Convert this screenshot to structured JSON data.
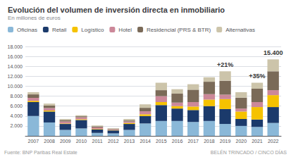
{
  "chart_data": {
    "type": "bar",
    "title": "Evolución del volumen de inversión directa en inmobiliario",
    "subtitle": "En millones de euros",
    "source": "Fuente: BNP Paribas Real Estate",
    "author": "BELÉN TRINCADO / CINCO DÍAS",
    "categories": [
      "2007",
      "2008",
      "2009",
      "2010",
      "2011",
      "2012",
      "2013",
      "2014",
      "2015",
      "2016",
      "2017",
      "2018",
      "2019",
      "2020",
      "2021",
      "2022"
    ],
    "series": [
      {
        "name": "Oficinas",
        "color": "#8ab8d8",
        "values": [
          4000,
          2700,
          1200,
          1500,
          600,
          500,
          1200,
          2500,
          3000,
          3000,
          2800,
          3000,
          2400,
          2000,
          1800,
          2600
        ]
      },
      {
        "name": "Retail",
        "color": "#1b3a6b",
        "values": [
          2800,
          2200,
          1200,
          1700,
          700,
          600,
          1200,
          1500,
          3200,
          2500,
          2400,
          3000,
          3000,
          1400,
          1500,
          3200
        ]
      },
      {
        "name": "Logístico",
        "color": "#f5c200",
        "values": [
          250,
          200,
          100,
          150,
          100,
          80,
          200,
          350,
          600,
          500,
          700,
          1300,
          2000,
          1500,
          2500,
          2400
        ]
      },
      {
        "name": "Hotel",
        "color": "#cc8899",
        "values": [
          600,
          500,
          400,
          400,
          300,
          150,
          300,
          600,
          1200,
          700,
          900,
          1100,
          900,
          600,
          1000,
          1000
        ]
      },
      {
        "name": "Residencial (PRS & BTR)",
        "color": "#7a6a58",
        "values": [
          700,
          500,
          300,
          200,
          200,
          100,
          200,
          700,
          1200,
          1800,
          2500,
          2500,
          2800,
          2200,
          2700,
          3800
        ]
      },
      {
        "name": "Alternativas",
        "color": "#ccc4aa",
        "values": [
          450,
          400,
          200,
          200,
          200,
          100,
          300,
          700,
          1500,
          900,
          1100,
          900,
          1900,
          1100,
          1200,
          2400
        ]
      }
    ],
    "stacked": true,
    "ylim": [
      0,
      18000
    ],
    "yticks": [
      {
        "value": 2000,
        "label": "2.000"
      },
      {
        "value": 4000,
        "label": "4.000"
      },
      {
        "value": 6000,
        "label": "6.000"
      },
      {
        "value": 8000,
        "label": "8.000"
      },
      {
        "value": 10000,
        "label": "10.000"
      },
      {
        "value": 12000,
        "label": "12.000"
      },
      {
        "value": 14000,
        "label": "14.000"
      },
      {
        "value": 16000,
        "label": "16.000"
      },
      {
        "value": 18000,
        "label": "18.000"
      }
    ],
    "grid": true,
    "legend": "top",
    "annotations": [
      {
        "text": "+21%",
        "category": "2019"
      },
      {
        "text": "+35%",
        "category": "2021"
      },
      {
        "text": "15.400",
        "category": "2022"
      }
    ]
  }
}
